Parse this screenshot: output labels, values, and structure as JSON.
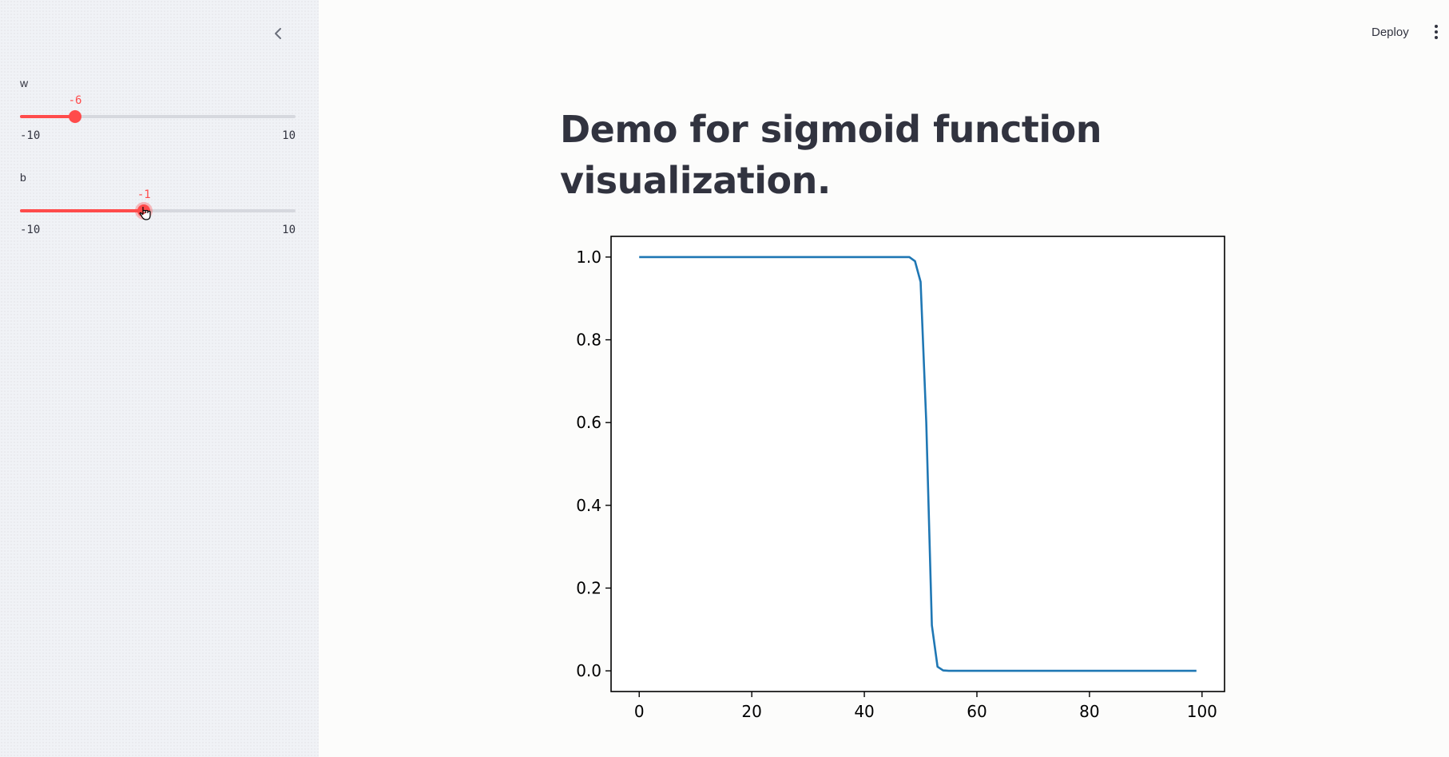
{
  "sidebar": {
    "collapse_icon": "chevron-left-icon",
    "sliders": [
      {
        "label": "w",
        "value": -6,
        "value_text": "-6",
        "min": -10,
        "max": 10,
        "min_text": "-10",
        "max_text": "10"
      },
      {
        "label": "b",
        "value": -1,
        "value_text": "-1",
        "min": -10,
        "max": 10,
        "min_text": "-10",
        "max_text": "10"
      }
    ]
  },
  "header": {
    "deploy_label": "Deploy",
    "menu_icon": "vertical-dots-icon"
  },
  "main": {
    "title": "Demo for sigmoid function visualization."
  },
  "colors": {
    "accent": "#ff4b4b",
    "line": "#1f77b4",
    "sidebar_bg": "#f0f2f6",
    "text": "#31333f"
  },
  "chart_data": {
    "type": "line",
    "title": "",
    "xlabel": "",
    "ylabel": "",
    "xlim": [
      -5,
      104
    ],
    "ylim": [
      -0.05,
      1.05
    ],
    "xticks": [
      0,
      20,
      40,
      60,
      80,
      100
    ],
    "xtick_labels": [
      "0",
      "20",
      "40",
      "60",
      "80",
      "100"
    ],
    "yticks": [
      0.0,
      0.2,
      0.4,
      0.6,
      0.8,
      1.0
    ],
    "ytick_labels": [
      "0.0",
      "0.2",
      "0.4",
      "0.6",
      "0.8",
      "1.0"
    ],
    "grid": false,
    "series": [
      {
        "x": [
          0,
          10,
          20,
          30,
          40,
          48,
          49,
          50,
          51,
          52,
          53,
          54,
          55,
          60,
          70,
          80,
          90,
          99
        ],
        "y": [
          1.0,
          1.0,
          1.0,
          1.0,
          1.0,
          1.0,
          0.99,
          0.94,
          0.6,
          0.11,
          0.01,
          0.001,
          0.0,
          0.0,
          0.0,
          0.0,
          0.0,
          0.0
        ]
      }
    ]
  }
}
